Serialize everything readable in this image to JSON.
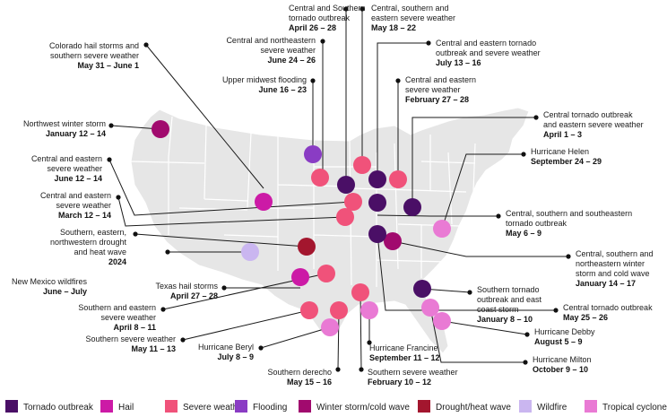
{
  "colors": {
    "tornado": "#4a0f66",
    "hail": "#cc1aa6",
    "severe": "#f0527a",
    "flooding": "#8a3cc4",
    "winter": "#a10a6e",
    "drought": "#a3162e",
    "wildfire": "#cab6f0",
    "cyclone": "#e97ad4",
    "map_fill": "#e6e6e6",
    "map_borders": "#ffffff"
  },
  "legend": [
    {
      "key": "tornado",
      "label": "Tornado outbreak",
      "color": "#4a0f66"
    },
    {
      "key": "hail",
      "label": "Hail",
      "color": "#cc1aa6"
    },
    {
      "key": "severe",
      "label": "Severe weather",
      "color": "#f0527a"
    },
    {
      "key": "flooding",
      "label": "Flooding",
      "color": "#8a3cc4"
    },
    {
      "key": "winter",
      "label": "Winter storm/cold wave",
      "color": "#a10a6e"
    },
    {
      "key": "drought",
      "label": "Drought/heat wave",
      "color": "#a3162e"
    },
    {
      "key": "wildfire",
      "label": "Wildfire",
      "color": "#cab6f0"
    },
    {
      "key": "cyclone",
      "label": "Tropical cyclone",
      "color": "#e97ad4"
    }
  ],
  "events": [
    {
      "id": "e1",
      "type": "tornado",
      "name_lines": [
        "Central and Southern",
        "tornado outbreak"
      ],
      "date": "April 26 – 28"
    },
    {
      "id": "e2",
      "type": "severe",
      "name_lines": [
        "Central, southern and",
        "eastern severe weather"
      ],
      "date": "May 18 – 22"
    },
    {
      "id": "e3",
      "type": "hail",
      "name_lines": [
        "Colorado hail storms and",
        "southern severe weather"
      ],
      "date": "May 31 – June 1"
    },
    {
      "id": "e4",
      "type": "severe",
      "name_lines": [
        "Central and northeastern",
        "severe weather"
      ],
      "date": "June 24 – 26"
    },
    {
      "id": "e5",
      "type": "tornado",
      "name_lines": [
        "Central and eastern tornado",
        "outbreak and severe weather"
      ],
      "date": "July 13 – 16"
    },
    {
      "id": "e6",
      "type": "flooding",
      "name_lines": [
        "Upper midwest flooding"
      ],
      "date": "June 16 – 23"
    },
    {
      "id": "e7",
      "type": "severe",
      "name_lines": [
        "Central and eastern",
        "severe weather"
      ],
      "date": "February 27 – 28"
    },
    {
      "id": "e8",
      "type": "tornado",
      "name_lines": [
        "Central tornado outbreak",
        "and eastern severe weather"
      ],
      "date": "April 1 – 3"
    },
    {
      "id": "e9",
      "type": "winter",
      "name_lines": [
        "Northwest winter storm"
      ],
      "date": "January 12 – 14"
    },
    {
      "id": "e10",
      "type": "cyclone",
      "name_lines": [
        "Hurricane Helen"
      ],
      "date": "September 24 – 29"
    },
    {
      "id": "e11",
      "type": "severe",
      "name_lines": [
        "Central and eastern",
        "severe weather"
      ],
      "date": "June 12 – 14"
    },
    {
      "id": "e12",
      "type": "severe",
      "name_lines": [
        "Central and eastern",
        "severe weather"
      ],
      "date": "March 12 – 14"
    },
    {
      "id": "e13",
      "type": "tornado",
      "name_lines": [
        "Central, southern and southeastern",
        "tornado outbreak"
      ],
      "date": "May 6 – 9"
    },
    {
      "id": "e14",
      "type": "drought",
      "name_lines": [
        "Southern, eastern,",
        "northwestern drought",
        "and heat wave"
      ],
      "date": "2024"
    },
    {
      "id": "e15",
      "type": "winter",
      "name_lines": [
        "Central, southern and",
        "northeastern winter",
        "storm and cold wave"
      ],
      "date": "January 14 – 17"
    },
    {
      "id": "e16",
      "type": "wildfire",
      "name_lines": [
        "New Mexico wildfires"
      ],
      "date": "June – July"
    },
    {
      "id": "e17",
      "type": "hail",
      "name_lines": [
        "Texas hail storms"
      ],
      "date": "April 27 – 28"
    },
    {
      "id": "e18",
      "type": "tornado",
      "name_lines": [
        "Southern tornado",
        "outbreak and east",
        "coast storm"
      ],
      "date": "January 8 – 10"
    },
    {
      "id": "e19",
      "type": "severe",
      "name_lines": [
        "Southern and eastern",
        "severe weather"
      ],
      "date": "April 8 – 11"
    },
    {
      "id": "e20",
      "type": "tornado",
      "name_lines": [
        "Central tornado outbreak"
      ],
      "date": "May 25 – 26"
    },
    {
      "id": "e21",
      "type": "severe",
      "name_lines": [
        "Southern severe weather"
      ],
      "date": "May 11 – 13"
    },
    {
      "id": "e22",
      "type": "cyclone",
      "name_lines": [
        "Hurricane Debby"
      ],
      "date": "August 5 – 9"
    },
    {
      "id": "e23",
      "type": "cyclone",
      "name_lines": [
        "Hurricane Beryl"
      ],
      "date": "July 8 – 9"
    },
    {
      "id": "e24",
      "type": "cyclone",
      "name_lines": [
        "Hurricane Francine"
      ],
      "date": "September 11 – 12"
    },
    {
      "id": "e25",
      "type": "cyclone",
      "name_lines": [
        "Hurricane Milton"
      ],
      "date": "October 9 – 10"
    },
    {
      "id": "e26",
      "type": "severe",
      "name_lines": [
        "Southern derecho"
      ],
      "date": "May 15 – 16"
    },
    {
      "id": "e27",
      "type": "severe",
      "name_lines": [
        "Southern severe weather"
      ],
      "date": "February 10 – 12"
    }
  ]
}
